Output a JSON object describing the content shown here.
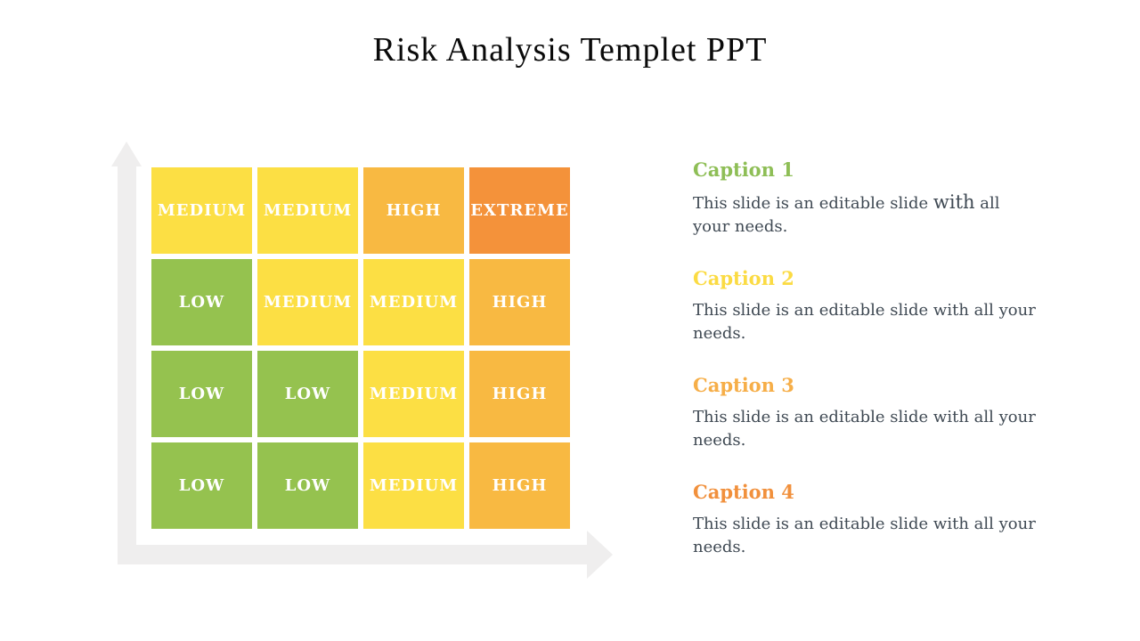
{
  "slide": {
    "title": "Risk Analysis Templet PPT",
    "title_color": "#0A0A0A",
    "background": "#FFFFFF"
  },
  "matrix": {
    "rows": 4,
    "columns": 4,
    "cells": [
      {
        "label": "MEDIUM",
        "level": "medium"
      },
      {
        "label": "MEDIUM",
        "level": "medium"
      },
      {
        "label": "HIGH",
        "level": "high"
      },
      {
        "label": "EXTREME",
        "level": "extreme"
      },
      {
        "label": "LOW",
        "level": "low"
      },
      {
        "label": "MEDIUM",
        "level": "medium"
      },
      {
        "label": "MEDIUM",
        "level": "medium"
      },
      {
        "label": "HIGH",
        "level": "high"
      },
      {
        "label": "LOW",
        "level": "low"
      },
      {
        "label": "LOW",
        "level": "low"
      },
      {
        "label": "MEDIUM",
        "level": "medium"
      },
      {
        "label": "HIGH",
        "level": "high"
      },
      {
        "label": "LOW",
        "level": "low"
      },
      {
        "label": "LOW",
        "level": "low"
      },
      {
        "label": "MEDIUM",
        "level": "medium"
      },
      {
        "label": "HIGH",
        "level": "high"
      }
    ],
    "level_colors": {
      "low": "#95C24F",
      "medium": "#FCDF44",
      "high": "#F8B942",
      "extreme": "#F4923A"
    },
    "cell_label_color": "#FFFFFF",
    "axes": {
      "color": "#EFEEEE",
      "y_arrow_direction": "up",
      "x_arrow_direction": "right"
    }
  },
  "captions": [
    {
      "title": "Caption 1",
      "color": "#8EBE56",
      "body_pre": "This slide is an editable slide ",
      "body_emph": "with",
      "body_post": " all your needs."
    },
    {
      "title": "Caption 2",
      "color": "#FBDB43",
      "body": "This slide is an editable slide with all your needs."
    },
    {
      "title": "Caption 3",
      "color": "#F6AE48",
      "body": "This slide is an editable slide with all your needs."
    },
    {
      "title": "Caption 4",
      "color": "#F1903C",
      "body": "This slide is an editable slide with all your needs."
    }
  ],
  "body_text_color": "#3F4953"
}
